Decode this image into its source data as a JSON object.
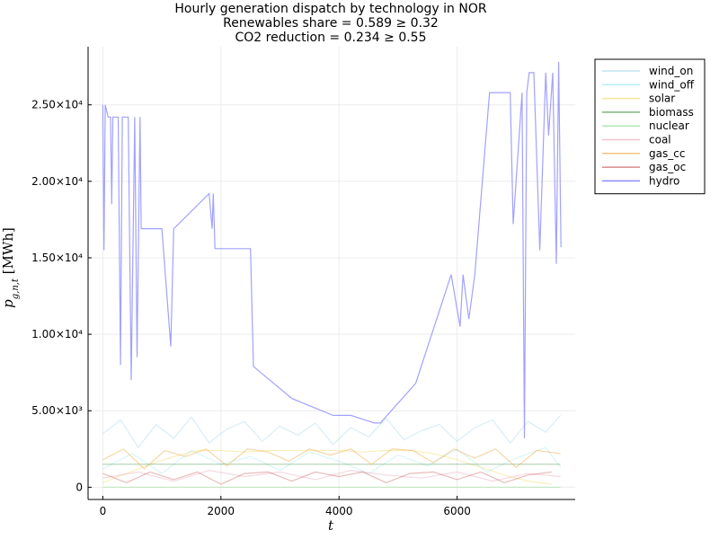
{
  "chart_data": {
    "type": "line",
    "title_lines": [
      "Hourly generation dispatch by technology in NOR",
      "Renewables share = 0.589 ≥ 0.32",
      "CO2 reduction = 0.234 ≥ 0.55"
    ],
    "xlabel": "t",
    "ylabel": "p_{g,n,t} [MWh]",
    "xlim": [
      -250,
      8000
    ],
    "ylim": [
      -800,
      28800
    ],
    "x_ticks": [
      0,
      2000,
      4000,
      6000
    ],
    "x_tick_labels": [
      "0",
      "2000",
      "4000",
      "6000"
    ],
    "y_ticks": [
      0,
      5000,
      10000,
      15000,
      20000,
      25000
    ],
    "y_tick_labels": [
      "0",
      "5.00×10³",
      "1.00×10⁴",
      "1.50×10⁴",
      "2.00×10⁴",
      "2.50×10⁴"
    ],
    "grid": true,
    "legend_position": "outer-top-right",
    "series": [
      {
        "name": "wind_on",
        "color": "#a8d8e8",
        "opacity": 0.45,
        "x": [
          0,
          300,
          600,
          900,
          1200,
          1500,
          1800,
          2100,
          2400,
          2700,
          3000,
          3300,
          3600,
          3900,
          4200,
          4500,
          4800,
          5100,
          5400,
          5700,
          6000,
          6300,
          6600,
          6900,
          7200,
          7500,
          7750
        ],
        "y": [
          3500,
          4400,
          2600,
          4100,
          3200,
          4600,
          2900,
          3800,
          4300,
          3000,
          4000,
          3400,
          4200,
          2800,
          3900,
          3300,
          4500,
          3100,
          3700,
          4100,
          3000,
          3900,
          4400,
          2900,
          4300,
          3600,
          4700
        ]
      },
      {
        "name": "wind_off",
        "color": "#7fe0e8",
        "opacity": 0.3,
        "x": [
          0,
          500,
          1000,
          1500,
          2000,
          2500,
          3000,
          3500,
          4000,
          4500,
          5000,
          5500,
          6000,
          6500,
          7000,
          7500,
          7750
        ],
        "y": [
          1200,
          2200,
          900,
          2400,
          1500,
          2000,
          1100,
          2300,
          1700,
          900,
          2100,
          1400,
          2500,
          1000,
          1900,
          2600,
          1300
        ]
      },
      {
        "name": "solar",
        "color": "#f2dc6a",
        "opacity": 0.45,
        "x": [
          0,
          400,
          800,
          1200,
          1600,
          2000,
          2400,
          2800,
          3200,
          3600,
          4000,
          4400,
          4800,
          5200,
          5600,
          6000,
          6400,
          6800,
          7200,
          7600
        ],
        "y": [
          300,
          900,
          1500,
          2000,
          2400,
          2400,
          2300,
          2400,
          2400,
          2400,
          2400,
          2300,
          2400,
          2400,
          2200,
          1800,
          1300,
          800,
          400,
          200
        ]
      },
      {
        "name": "biomass",
        "color": "#3a8a3a",
        "opacity": 0.4,
        "x": [
          0,
          1000,
          2000,
          3000,
          4000,
          5000,
          6000,
          7000,
          7750
        ],
        "y": [
          1500,
          1500,
          1500,
          1500,
          1500,
          1500,
          1500,
          1500,
          1500
        ]
      },
      {
        "name": "nuclear",
        "color": "#7ed87e",
        "opacity": 0.35,
        "x": [
          0,
          1000,
          2000,
          3000,
          4000,
          5000,
          6000,
          7000,
          7750
        ],
        "y": [
          0,
          0,
          0,
          0,
          0,
          0,
          0,
          0,
          0
        ]
      },
      {
        "name": "coal",
        "color": "#e8a0b4",
        "opacity": 0.4,
        "x": [
          0,
          600,
          1200,
          1800,
          2400,
          3000,
          3600,
          4200,
          4800,
          5400,
          6000,
          6600,
          7200,
          7750
        ],
        "y": [
          600,
          1000,
          400,
          1100,
          700,
          1000,
          500,
          1100,
          800,
          600,
          1000,
          400,
          900,
          700
        ]
      },
      {
        "name": "gas_cc",
        "color": "#f0b050",
        "opacity": 0.5,
        "x": [
          0,
          350,
          700,
          1050,
          1400,
          1750,
          2100,
          2450,
          2800,
          3150,
          3500,
          3850,
          4200,
          4550,
          4900,
          5250,
          5600,
          5950,
          6300,
          6650,
          7000,
          7350,
          7750
        ],
        "y": [
          1800,
          2500,
          1200,
          2400,
          2000,
          2500,
          1400,
          2500,
          2300,
          1700,
          2500,
          2100,
          2500,
          1500,
          2500,
          2400,
          1600,
          2500,
          1900,
          2500,
          1300,
          2400,
          2200
        ]
      },
      {
        "name": "gas_oc",
        "color": "#c04040",
        "opacity": 0.35,
        "x": [
          0,
          400,
          800,
          1200,
          1600,
          2000,
          2400,
          2800,
          3200,
          3600,
          4000,
          4400,
          4800,
          5200,
          5600,
          6000,
          6400,
          6800,
          7200,
          7600
        ],
        "y": [
          900,
          300,
          1000,
          500,
          1000,
          200,
          900,
          1000,
          400,
          1000,
          700,
          1000,
          300,
          900,
          1000,
          500,
          1000,
          300,
          800,
          1000
        ]
      },
      {
        "name": "hydro",
        "color": "#8a8aff",
        "opacity": 0.8,
        "x": [
          0,
          20,
          40,
          90,
          130,
          150,
          170,
          260,
          300,
          330,
          360,
          430,
          480,
          540,
          580,
          630,
          650,
          1000,
          1150,
          1200,
          1800,
          1850,
          1870,
          1900,
          2500,
          2550,
          3200,
          3900,
          4200,
          4600,
          4700,
          5300,
          5900,
          6050,
          6100,
          6200,
          6300,
          6550,
          6900,
          6950,
          7100,
          7140,
          7180,
          7220,
          7300,
          7400,
          7500,
          7550,
          7620,
          7680,
          7720,
          7760
        ],
        "y": [
          25000,
          15500,
          25000,
          24200,
          24200,
          18500,
          24200,
          24200,
          8000,
          24200,
          24200,
          24200,
          7000,
          24200,
          8500,
          24200,
          16900,
          16900,
          9200,
          16900,
          19200,
          16900,
          19200,
          15600,
          15600,
          7900,
          5800,
          4700,
          4700,
          4200,
          4200,
          6800,
          13900,
          10500,
          13900,
          11000,
          13900,
          25800,
          25800,
          17200,
          25800,
          3200,
          25800,
          27100,
          27100,
          15500,
          27100,
          23000,
          27100,
          14600,
          27800,
          15700
        ]
      }
    ]
  }
}
